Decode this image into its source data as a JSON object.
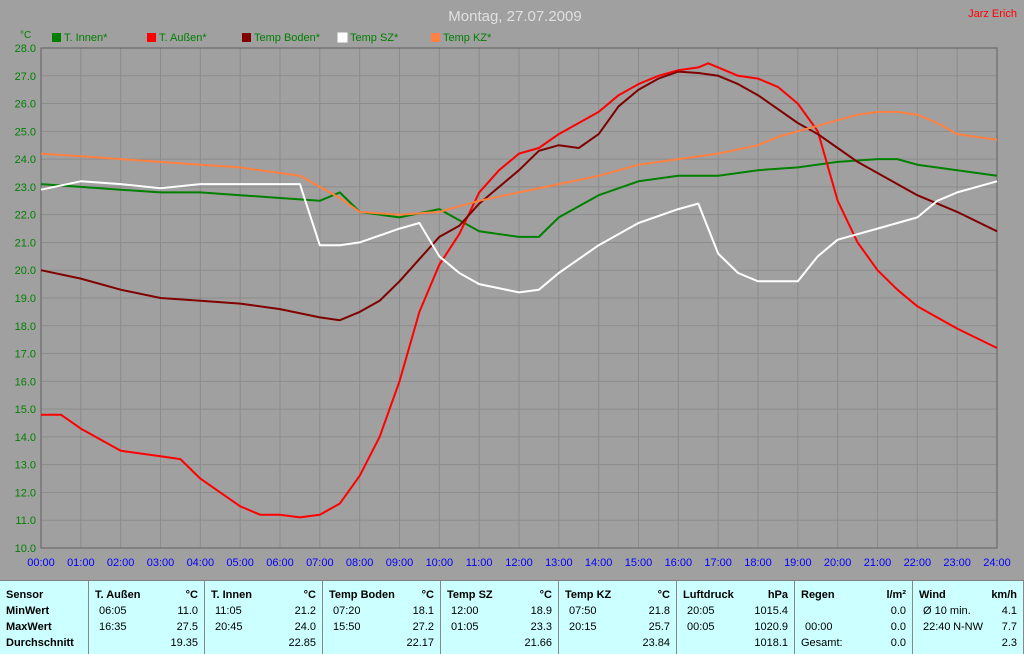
{
  "header": {
    "title": "Montag, 27.07.2009",
    "author": "Jarz Erich",
    "y_unit": "°C"
  },
  "colors": {
    "background": "#a0a0a0",
    "plot_background": "#a0a0a0",
    "grid": "#8c8c8c",
    "table_background": "#ccffff",
    "title": "#e0e0e0",
    "author": "#ff0000"
  },
  "chart_data": {
    "type": "line",
    "title": "Montag, 27.07.2009",
    "xlabel": "",
    "ylabel": "°C",
    "xlim": [
      0,
      24
    ],
    "ylim": [
      10,
      28
    ],
    "grid": true,
    "legend_position": "top",
    "x_ticks": [
      "00:00",
      "01:00",
      "02:00",
      "03:00",
      "04:00",
      "05:00",
      "06:00",
      "07:00",
      "08:00",
      "09:00",
      "10:00",
      "11:00",
      "12:00",
      "13:00",
      "14:00",
      "15:00",
      "16:00",
      "17:00",
      "18:00",
      "19:00",
      "20:00",
      "21:00",
      "22:00",
      "23:00",
      "24:00"
    ],
    "y_ticks": [
      "10.0",
      "11.0",
      "12.0",
      "13.0",
      "14.0",
      "15.0",
      "16.0",
      "17.0",
      "18.0",
      "19.0",
      "20.0",
      "21.0",
      "22.0",
      "23.0",
      "24.0",
      "25.0",
      "26.0",
      "27.0",
      "28.0"
    ],
    "series": [
      {
        "name": "T. Innen*",
        "color": "#008000",
        "label_color": "#008000",
        "x": [
          0,
          1,
          2,
          3,
          4,
          5,
          6,
          7,
          7.5,
          8,
          9,
          10,
          10.5,
          11,
          12,
          12.5,
          13,
          14,
          15,
          16,
          17,
          18,
          19,
          20,
          21,
          21.5,
          22,
          23,
          24
        ],
        "y": [
          23.1,
          23.0,
          22.9,
          22.8,
          22.8,
          22.7,
          22.6,
          22.5,
          22.8,
          22.1,
          21.9,
          22.2,
          21.8,
          21.4,
          21.2,
          21.2,
          21.9,
          22.7,
          23.2,
          23.4,
          23.4,
          23.6,
          23.7,
          23.9,
          24.0,
          24.0,
          23.8,
          23.6,
          23.4
        ]
      },
      {
        "name": "T. Außen*",
        "color": "#ff0000",
        "label_color": "#008000",
        "x": [
          0,
          0.5,
          1,
          2,
          3,
          3.5,
          4,
          5,
          5.5,
          6,
          6.5,
          7,
          7.5,
          8,
          8.5,
          9,
          9.5,
          10,
          10.5,
          11,
          11.5,
          12,
          12.5,
          13,
          14,
          14.5,
          15,
          15.5,
          16,
          16.5,
          16.75,
          17,
          17.5,
          18,
          18.5,
          19,
          19.5,
          20,
          20.5,
          21,
          21.5,
          22,
          23,
          24
        ],
        "y": [
          14.8,
          14.8,
          14.3,
          13.5,
          13.3,
          13.2,
          12.5,
          11.5,
          11.2,
          11.2,
          11.1,
          11.2,
          11.6,
          12.6,
          14.0,
          16.0,
          18.5,
          20.2,
          21.3,
          22.8,
          23.6,
          24.2,
          24.4,
          24.9,
          25.7,
          26.3,
          26.7,
          27.0,
          27.2,
          27.3,
          27.45,
          27.3,
          27.0,
          26.9,
          26.6,
          26.0,
          25.0,
          22.5,
          21.0,
          20.0,
          19.3,
          18.7,
          17.9,
          17.2
        ]
      },
      {
        "name": "Temp Boden*",
        "color": "#800000",
        "label_color": "#008000",
        "x": [
          0,
          1,
          2,
          3,
          4,
          5,
          6,
          7,
          7.5,
          8,
          8.5,
          9,
          9.5,
          10,
          10.5,
          11,
          11.5,
          12,
          12.5,
          13,
          13.5,
          14,
          14.5,
          15,
          15.5,
          16,
          16.5,
          17,
          17.5,
          18,
          18.5,
          19,
          19.5,
          20,
          20.5,
          21,
          21.5,
          22,
          23,
          24
        ],
        "y": [
          20.0,
          19.7,
          19.3,
          19.0,
          18.9,
          18.8,
          18.6,
          18.3,
          18.2,
          18.5,
          18.9,
          19.6,
          20.4,
          21.2,
          21.6,
          22.4,
          23.0,
          23.6,
          24.3,
          24.5,
          24.4,
          24.9,
          25.9,
          26.5,
          26.9,
          27.15,
          27.1,
          27.0,
          26.7,
          26.3,
          25.8,
          25.3,
          24.9,
          24.4,
          23.9,
          23.5,
          23.1,
          22.7,
          22.1,
          21.4
        ]
      },
      {
        "name": "Temp SZ*",
        "color": "#ffffff",
        "label_color": "#008000",
        "x": [
          0,
          1,
          2,
          3,
          4,
          5,
          6,
          6.5,
          7,
          7.5,
          8,
          9,
          9.5,
          10,
          10.5,
          11,
          12,
          12.5,
          13,
          14,
          15,
          16,
          16.5,
          17,
          17.5,
          18,
          19,
          19.5,
          20,
          21,
          21.5,
          22,
          22.5,
          23,
          24
        ],
        "y": [
          22.9,
          23.2,
          23.1,
          22.95,
          23.1,
          23.1,
          23.1,
          23.1,
          20.9,
          20.9,
          21.0,
          21.5,
          21.7,
          20.5,
          19.9,
          19.5,
          19.2,
          19.3,
          19.9,
          20.9,
          21.7,
          22.2,
          22.4,
          20.6,
          19.9,
          19.6,
          19.6,
          20.5,
          21.1,
          21.5,
          21.7,
          21.9,
          22.5,
          22.8,
          23.2
        ]
      },
      {
        "name": "Temp KZ*",
        "color": "#ff8040",
        "label_color": "#008000",
        "x": [
          0,
          1,
          2,
          3,
          4,
          5,
          6,
          6.5,
          7,
          7.5,
          8,
          9,
          10,
          10.5,
          11,
          12,
          13,
          14,
          15,
          16,
          17,
          18,
          18.5,
          19,
          19.5,
          20,
          20.5,
          21,
          21.5,
          22,
          22.5,
          23,
          24
        ],
        "y": [
          24.2,
          24.1,
          24.0,
          23.9,
          23.8,
          23.7,
          23.5,
          23.4,
          23.0,
          22.6,
          22.1,
          22.0,
          22.1,
          22.3,
          22.5,
          22.8,
          23.1,
          23.4,
          23.8,
          24.0,
          24.2,
          24.5,
          24.8,
          25.0,
          25.2,
          25.4,
          25.6,
          25.7,
          25.7,
          25.6,
          25.3,
          24.9,
          24.7
        ]
      }
    ]
  },
  "stats": {
    "sensor": {
      "header": "Sensor",
      "rows": [
        "MinWert",
        "MaxWert",
        "Durchschnitt"
      ]
    },
    "columns": [
      {
        "name": "T. Außen",
        "unit": "°C",
        "min": {
          "time": "06:05",
          "value": "11.0"
        },
        "max": {
          "time": "16:35",
          "value": "27.5"
        },
        "avg": "19.35"
      },
      {
        "name": "T. Innen",
        "unit": "°C",
        "min": {
          "time": "11:05",
          "value": "21.2"
        },
        "max": {
          "time": "20:45",
          "value": "24.0"
        },
        "avg": "22.85"
      },
      {
        "name": "Temp Boden",
        "unit": "°C",
        "min": {
          "time": "07:20",
          "value": "18.1"
        },
        "max": {
          "time": "15:50",
          "value": "27.2"
        },
        "avg": "22.17"
      },
      {
        "name": "Temp SZ",
        "unit": "°C",
        "min": {
          "time": "12:00",
          "value": "18.9"
        },
        "max": {
          "time": "01:05",
          "value": "23.3"
        },
        "avg": "21.66"
      },
      {
        "name": "Temp KZ",
        "unit": "°C",
        "min": {
          "time": "07:50",
          "value": "21.8"
        },
        "max": {
          "time": "20:15",
          "value": "25.7"
        },
        "avg": "23.84"
      },
      {
        "name": "Luftdruck",
        "unit": "hPa",
        "min": {
          "time": "20:05",
          "value": "1015.4"
        },
        "max": {
          "time": "00:05",
          "value": "1020.9"
        },
        "avg": "1018.1"
      },
      {
        "name": "Regen",
        "unit": "l/m²",
        "min": {
          "time": "",
          "value": "0.0"
        },
        "max": {
          "time": "00:00",
          "value": "0.0"
        },
        "avg_label": "Gesamt:",
        "avg": "0.0"
      },
      {
        "name": "Wind",
        "unit": "km/h",
        "min": {
          "time": "Ø 10 min.",
          "value": "4.1"
        },
        "max": {
          "time": "22:40",
          "dir": "N-NW",
          "value": "7.7"
        },
        "avg": "2.3"
      }
    ]
  }
}
